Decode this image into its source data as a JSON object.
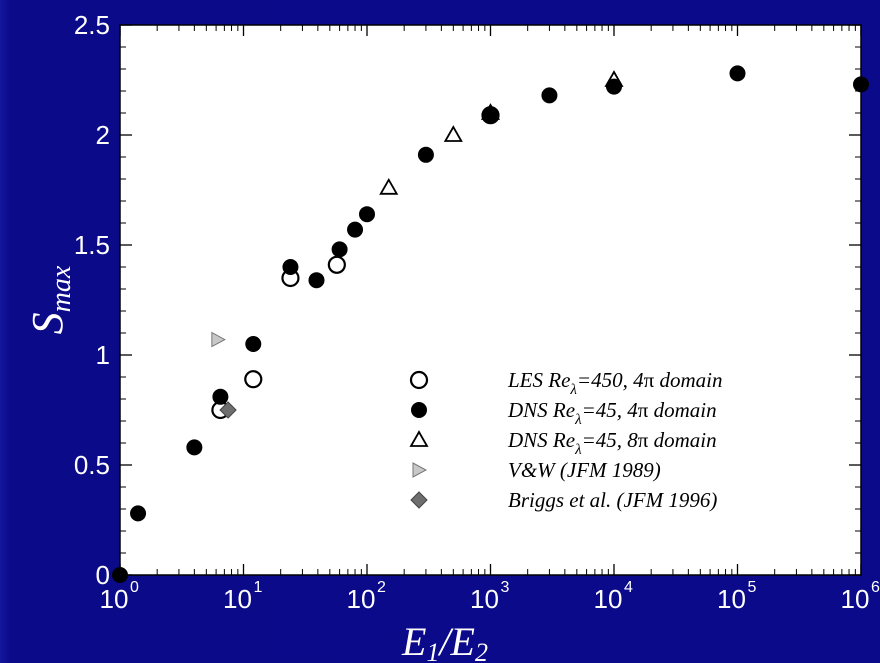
{
  "chart_data": {
    "type": "scatter",
    "xscale": "log",
    "xlim": [
      1,
      1000000
    ],
    "ylim": [
      0,
      2.5
    ],
    "xlabel": {
      "main": "E",
      "sub1": "1",
      "slash": "/E",
      "sub2": "2"
    },
    "ylabel": {
      "main": "S",
      "sub": "max"
    },
    "y_ticks": [
      "0",
      "0.5",
      "1",
      "1.5",
      "2",
      "2.5"
    ],
    "x_ticks": [
      {
        "base": "10",
        "exp": "0"
      },
      {
        "base": "10",
        "exp": "1"
      },
      {
        "base": "10",
        "exp": "2"
      },
      {
        "base": "10",
        "exp": "3"
      },
      {
        "base": "10",
        "exp": "4"
      },
      {
        "base": "10",
        "exp": "5"
      },
      {
        "base": "10",
        "exp": "6"
      }
    ],
    "grid": false,
    "legend_position": "bottom-right",
    "colors": {
      "plot_bg": "#ffffff",
      "frame_bg": "#0a0a8a",
      "text": "#ffffff",
      "tri_fill": "#c8c8c8",
      "diamond_fill": "#6e6e6e"
    },
    "series": [
      {
        "name": "LES Re",
        "marker": "open-circle",
        "legend": {
          "pre": "LES Re",
          "sub": "λ",
          "post": "=450,  4",
          "pi": "π",
          "tail": " domain"
        },
        "points": [
          [
            6.5,
            0.75
          ],
          [
            12,
            0.89
          ],
          [
            24,
            1.35
          ],
          [
            57,
            1.41
          ],
          [
            1000,
            2.09
          ]
        ]
      },
      {
        "name": "DNS Re 4pi",
        "marker": "filled-circle",
        "legend": {
          "pre": "DNS Re",
          "sub": "λ",
          "post": "=45,  4",
          "pi": "π",
          "tail": " domain"
        },
        "points": [
          [
            1,
            0
          ],
          [
            1.4,
            0.28
          ],
          [
            4,
            0.58
          ],
          [
            6.5,
            0.81
          ],
          [
            12,
            1.05
          ],
          [
            24,
            1.4
          ],
          [
            39,
            1.34
          ],
          [
            60,
            1.48
          ],
          [
            80,
            1.57
          ],
          [
            100,
            1.64
          ],
          [
            300,
            1.91
          ],
          [
            1000,
            2.09
          ],
          [
            3000,
            2.18
          ],
          [
            10000,
            2.22
          ],
          [
            100000,
            2.28
          ],
          [
            1000000,
            2.23
          ]
        ]
      },
      {
        "name": "DNS Re 8pi",
        "marker": "open-triangle",
        "legend": {
          "pre": "DNS Re",
          "sub": "λ",
          "post": "=45,  8",
          "pi": "π",
          "tail": " domain"
        },
        "points": [
          [
            150,
            1.76
          ],
          [
            500,
            2.0
          ],
          [
            1000,
            2.1
          ],
          [
            10000,
            2.25
          ]
        ]
      },
      {
        "name": "V&W (JFM 1989)",
        "marker": "gray-triangle-right",
        "legend": {
          "pre": "V&W (JFM 1989)",
          "sub": "",
          "post": "",
          "pi": "",
          "tail": ""
        },
        "points": [
          [
            6.2,
            1.07
          ]
        ]
      },
      {
        "name": "Briggs et al. (JFM 1996)",
        "marker": "gray-diamond",
        "legend": {
          "pre": "Briggs et al. (JFM 1996)",
          "sub": "",
          "post": "",
          "pi": "",
          "tail": ""
        },
        "points": [
          [
            7.5,
            0.75
          ]
        ]
      }
    ]
  }
}
